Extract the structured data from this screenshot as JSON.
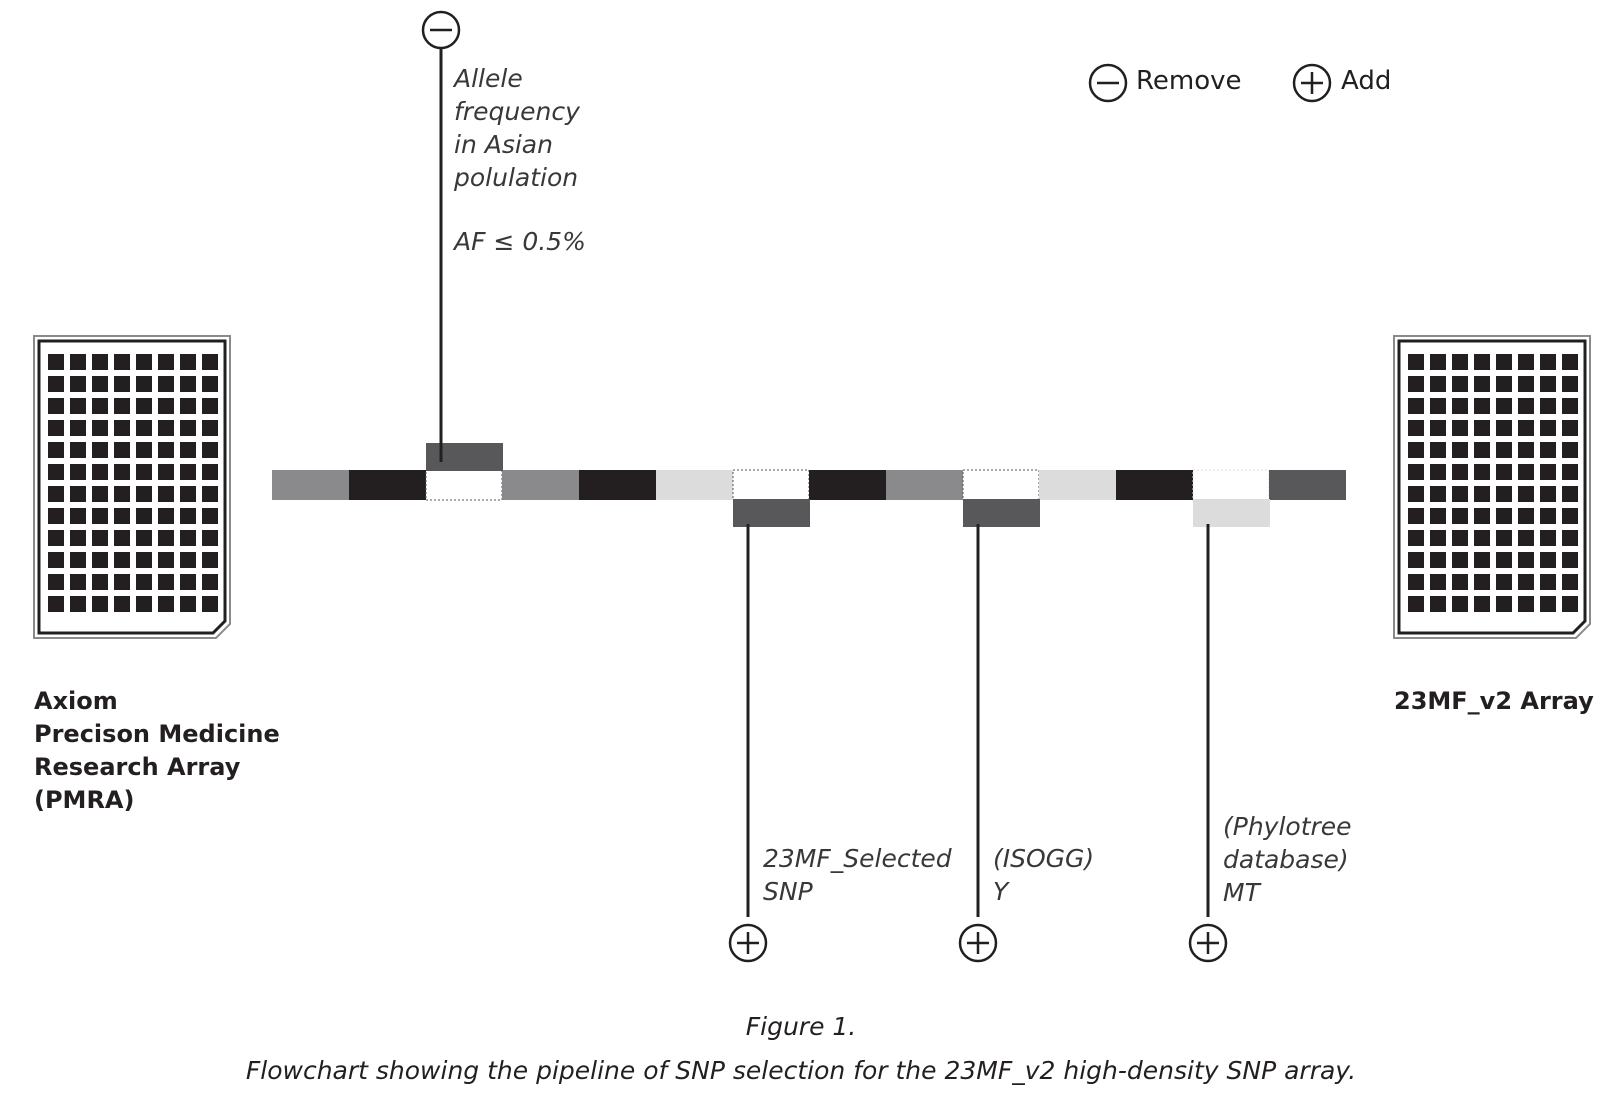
{
  "legend": {
    "remove_label": "Remove",
    "add_label": "Add",
    "remove_icon": "minus-circle-icon",
    "add_icon": "plus-circle-icon"
  },
  "source_array": {
    "name": "Axiom\nPrecison Medicine\nResearch Array\n(PMRA)",
    "icon": "microarray-chip-icon"
  },
  "target_array": {
    "name": "23MF_v2 Array",
    "icon": "microarray-chip-icon"
  },
  "remove_step": {
    "label": "Allele\nfrequency\nin Asian\npolulation",
    "criterion": "AF ≤ 0.5%",
    "icon": "minus-circle-icon"
  },
  "add_steps": [
    {
      "label": "23MF_Selected\nSNP",
      "icon": "plus-circle-icon"
    },
    {
      "label": "(ISOGG)\nY",
      "icon": "plus-circle-icon"
    },
    {
      "label": "(Phylotree\ndatabase)\nMT",
      "icon": "plus-circle-icon"
    }
  ],
  "caption": {
    "title": "Figure 1.",
    "text": "Flowchart showing the pipeline of SNP selection for the 23MF_v2 high-density SNP array."
  },
  "colors": {
    "black": "#231f20",
    "dark_gray": "#58585a",
    "mid_gray": "#8a8a8c",
    "light_gray": "#dcdcdc"
  }
}
